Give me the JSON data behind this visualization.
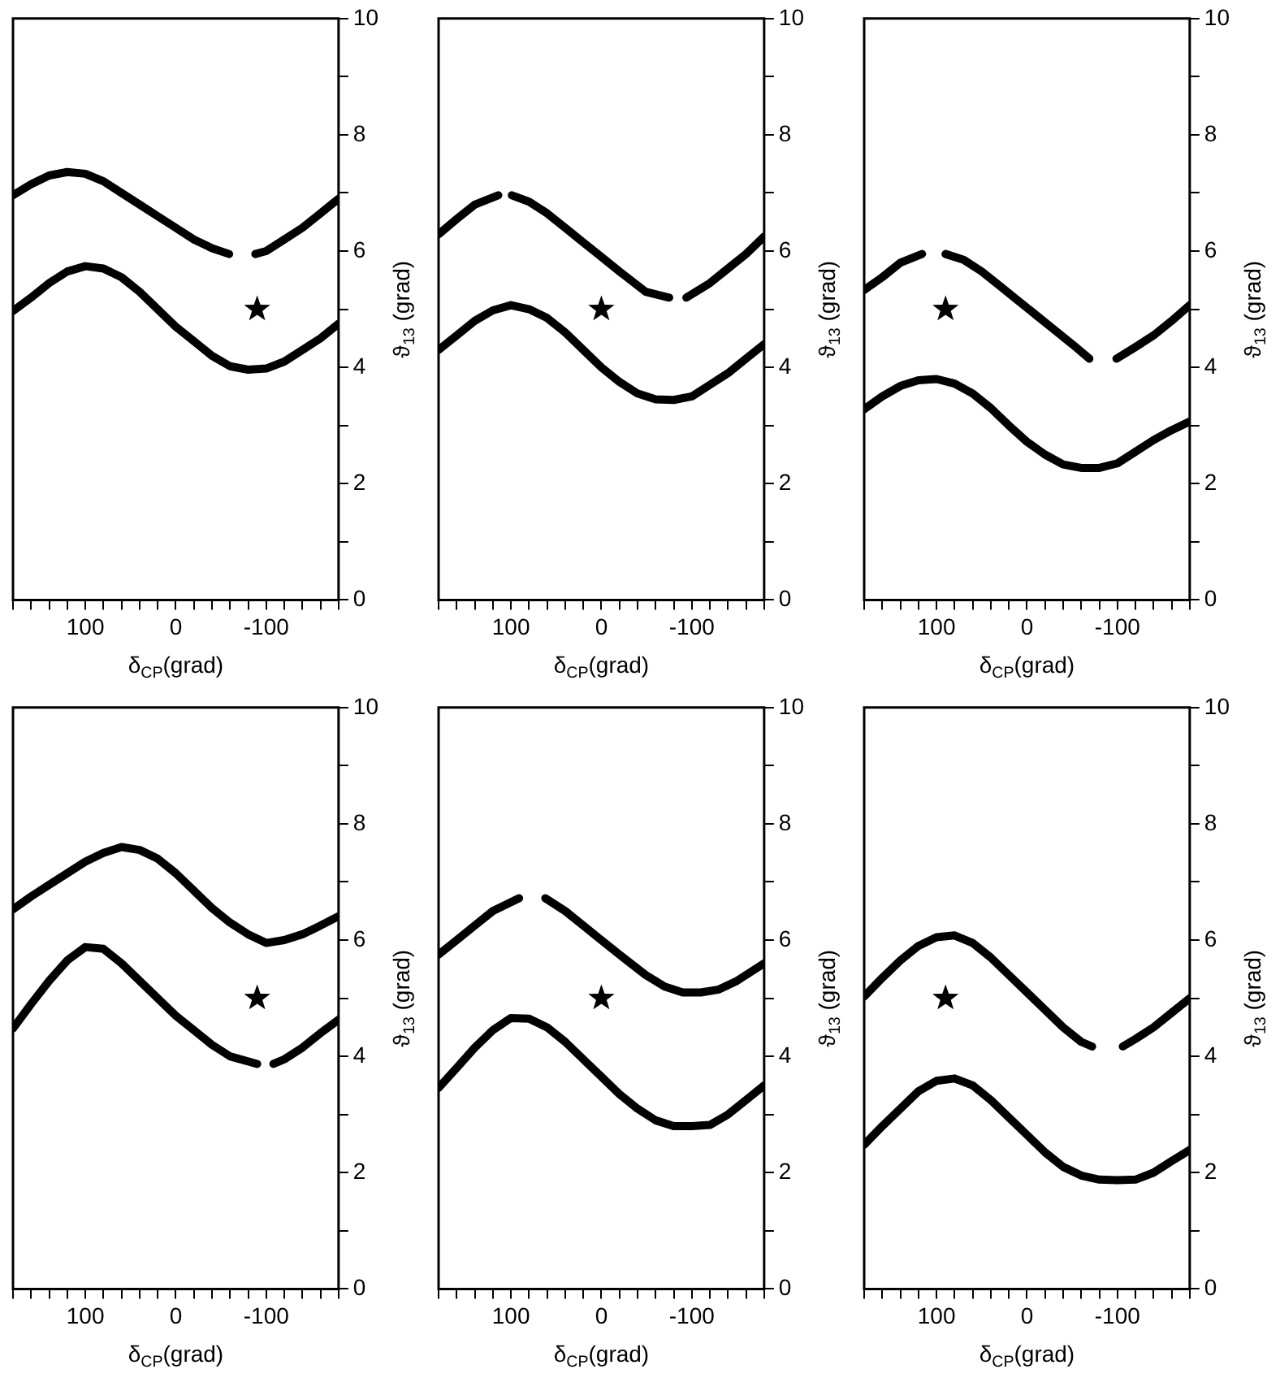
{
  "chart_data": [
    {
      "type": "line",
      "xlabel": "δ$_{CP}$(grad)",
      "ylabel": "ϑ$_{13}$ (grad)",
      "xlim": [
        180,
        -180
      ],
      "ylim": [
        0,
        10
      ],
      "xticks": [
        {
          "value": 180,
          "label": null
        },
        {
          "value": 160,
          "label": null
        },
        {
          "value": 140,
          "label": null
        },
        {
          "value": 120,
          "label": null
        },
        100,
        {
          "value": 80,
          "label": null
        },
        {
          "value": 60,
          "label": null
        },
        {
          "value": 40,
          "label": null
        },
        {
          "value": 20,
          "label": null
        },
        0,
        {
          "value": -20,
          "label": null
        },
        {
          "value": -40,
          "label": null
        },
        {
          "value": -60,
          "label": null
        },
        {
          "value": -80,
          "label": null
        },
        -100,
        {
          "value": -120,
          "label": null
        },
        {
          "value": -140,
          "label": null
        },
        {
          "value": -160,
          "label": null
        },
        {
          "value": -180,
          "label": null
        }
      ],
      "yticks": [
        0,
        {
          "value": 1,
          "label": null
        },
        2,
        {
          "value": 3,
          "label": null
        },
        4,
        {
          "value": 5,
          "label": null
        },
        6,
        {
          "value": 7,
          "label": null
        },
        8,
        {
          "value": 9,
          "label": null
        },
        10
      ],
      "grid": false,
      "legend": false,
      "marker": "none",
      "line_style": "solid",
      "series": [
        {
          "color": "#000000",
          "x": [
            180,
            160,
            140,
            120,
            100,
            80,
            60,
            40,
            20,
            0,
            -20,
            -40,
            -59
          ],
          "values": [
            6.96,
            7.15,
            7.3,
            7.36,
            7.33,
            7.2,
            7.0,
            6.8,
            6.6,
            6.4,
            6.2,
            6.05,
            5.95
          ]
        },
        {
          "color": "#000000",
          "x": [
            -88,
            -100,
            -120,
            -140,
            -160,
            -180
          ],
          "values": [
            5.95,
            6.0,
            6.2,
            6.4,
            6.65,
            6.9
          ]
        },
        {
          "color": "#000000",
          "x": [
            180,
            160,
            140,
            120,
            100,
            80,
            60,
            40,
            20,
            0,
            -20,
            -40,
            -60,
            -80,
            -100,
            -120,
            -140,
            -160,
            -180
          ],
          "values": [
            4.97,
            5.2,
            5.45,
            5.65,
            5.74,
            5.7,
            5.55,
            5.3,
            5.0,
            4.7,
            4.45,
            4.2,
            4.02,
            3.96,
            3.98,
            4.1,
            4.3,
            4.5,
            4.75
          ]
        },
        {
          "type": "scatter",
          "marker": "star",
          "color": "#000000",
          "x": [
            -90
          ],
          "values": [
            5
          ]
        }
      ]
    },
    {
      "type": "line",
      "xlabel": "δ$_{CP}$(grad)",
      "ylabel": "ϑ$_{13}$ (grad)",
      "xlim": [
        180,
        -180
      ],
      "ylim": [
        0,
        10
      ],
      "xticks": [
        {
          "value": 180,
          "label": null
        },
        {
          "value": 160,
          "label": null
        },
        {
          "value": 140,
          "label": null
        },
        {
          "value": 120,
          "label": null
        },
        100,
        {
          "value": 80,
          "label": null
        },
        {
          "value": 60,
          "label": null
        },
        {
          "value": 40,
          "label": null
        },
        {
          "value": 20,
          "label": null
        },
        0,
        {
          "value": -20,
          "label": null
        },
        {
          "value": -40,
          "label": null
        },
        {
          "value": -60,
          "label": null
        },
        {
          "value": -80,
          "label": null
        },
        -100,
        {
          "value": -120,
          "label": null
        },
        {
          "value": -140,
          "label": null
        },
        {
          "value": -160,
          "label": null
        },
        {
          "value": -180,
          "label": null
        }
      ],
      "yticks": [
        0,
        {
          "value": 1,
          "label": null
        },
        2,
        {
          "value": 3,
          "label": null
        },
        4,
        {
          "value": 5,
          "label": null
        },
        6,
        {
          "value": 7,
          "label": null
        },
        8,
        {
          "value": 9,
          "label": null
        },
        10
      ],
      "grid": false,
      "legend": false,
      "marker": "none",
      "line_style": "solid",
      "series": [
        {
          "color": "#000000",
          "x": [
            180,
            160,
            140,
            114
          ],
          "values": [
            6.29,
            6.55,
            6.8,
            6.96
          ]
        },
        {
          "color": "#000000",
          "x": [
            99,
            80,
            60,
            40,
            20,
            0,
            -20,
            -49,
            -75
          ],
          "values": [
            6.96,
            6.85,
            6.65,
            6.4,
            6.15,
            5.9,
            5.65,
            5.3,
            5.2
          ]
        },
        {
          "color": "#000000",
          "x": [
            -94,
            -120,
            -140,
            -160,
            -180
          ],
          "values": [
            5.2,
            5.45,
            5.7,
            5.95,
            6.25
          ]
        },
        {
          "color": "#000000",
          "x": [
            180,
            160,
            140,
            120,
            100,
            80,
            60,
            40,
            20,
            0,
            -20,
            -40,
            -60,
            -80,
            -100,
            -120,
            -140,
            -160,
            -180
          ],
          "values": [
            4.3,
            4.55,
            4.8,
            4.98,
            5.07,
            5.0,
            4.85,
            4.6,
            4.3,
            4.0,
            3.75,
            3.55,
            3.45,
            3.44,
            3.5,
            3.7,
            3.9,
            4.15,
            4.4
          ]
        },
        {
          "type": "scatter",
          "marker": "star",
          "color": "#000000",
          "x": [
            0
          ],
          "values": [
            5
          ]
        }
      ]
    },
    {
      "type": "line",
      "xlabel": "δ$_{CP}$(grad)",
      "ylabel": "ϑ$_{13}$ (grad)",
      "xlim": [
        180,
        -180
      ],
      "ylim": [
        0,
        10
      ],
      "xticks": [
        {
          "value": 180,
          "label": null
        },
        {
          "value": 160,
          "label": null
        },
        {
          "value": 140,
          "label": null
        },
        {
          "value": 120,
          "label": null
        },
        100,
        {
          "value": 80,
          "label": null
        },
        {
          "value": 60,
          "label": null
        },
        {
          "value": 40,
          "label": null
        },
        {
          "value": 20,
          "label": null
        },
        0,
        {
          "value": -20,
          "label": null
        },
        {
          "value": -40,
          "label": null
        },
        {
          "value": -60,
          "label": null
        },
        {
          "value": -80,
          "label": null
        },
        -100,
        {
          "value": -120,
          "label": null
        },
        {
          "value": -140,
          "label": null
        },
        {
          "value": -160,
          "label": null
        },
        {
          "value": -180,
          "label": null
        }
      ],
      "yticks": [
        0,
        {
          "value": 1,
          "label": null
        },
        2,
        {
          "value": 3,
          "label": null
        },
        4,
        {
          "value": 5,
          "label": null
        },
        6,
        {
          "value": 7,
          "label": null
        },
        8,
        {
          "value": 9,
          "label": null
        },
        10
      ],
      "grid": false,
      "legend": false,
      "marker": "none",
      "line_style": "solid",
      "series": [
        {
          "color": "#000000",
          "x": [
            180,
            160,
            140,
            116
          ],
          "values": [
            5.33,
            5.55,
            5.8,
            5.95
          ]
        },
        {
          "color": "#000000",
          "x": [
            90,
            70,
            50,
            30,
            10,
            -10,
            -30,
            -50,
            -69
          ],
          "values": [
            5.95,
            5.85,
            5.65,
            5.4,
            5.15,
            4.9,
            4.65,
            4.4,
            4.15
          ]
        },
        {
          "color": "#000000",
          "x": [
            -99,
            -120,
            -140,
            -160,
            -180
          ],
          "values": [
            4.15,
            4.35,
            4.55,
            4.8,
            5.07
          ]
        },
        {
          "color": "#000000",
          "x": [
            180,
            160,
            140,
            120,
            100,
            80,
            60,
            40,
            20,
            0,
            -20,
            -40,
            -60,
            -80,
            -100,
            -120,
            -140,
            -160,
            -180
          ],
          "values": [
            3.28,
            3.5,
            3.68,
            3.78,
            3.8,
            3.72,
            3.55,
            3.3,
            3.0,
            2.72,
            2.5,
            2.33,
            2.27,
            2.27,
            2.35,
            2.55,
            2.75,
            2.92,
            3.07
          ]
        },
        {
          "type": "scatter",
          "marker": "star",
          "color": "#000000",
          "x": [
            90
          ],
          "values": [
            5
          ]
        }
      ]
    },
    {
      "type": "line",
      "xlabel": "δ$_{CP}$(grad)",
      "ylabel": "ϑ$_{13}$ (grad)",
      "xlim": [
        180,
        -180
      ],
      "ylim": [
        0,
        10
      ],
      "xticks": [
        {
          "value": 180,
          "label": null
        },
        {
          "value": 160,
          "label": null
        },
        {
          "value": 140,
          "label": null
        },
        {
          "value": 120,
          "label": null
        },
        100,
        {
          "value": 80,
          "label": null
        },
        {
          "value": 60,
          "label": null
        },
        {
          "value": 40,
          "label": null
        },
        {
          "value": 20,
          "label": null
        },
        0,
        {
          "value": -20,
          "label": null
        },
        {
          "value": -40,
          "label": null
        },
        {
          "value": -60,
          "label": null
        },
        {
          "value": -80,
          "label": null
        },
        -100,
        {
          "value": -120,
          "label": null
        },
        {
          "value": -140,
          "label": null
        },
        {
          "value": -160,
          "label": null
        },
        {
          "value": -180,
          "label": null
        }
      ],
      "yticks": [
        0,
        {
          "value": 1,
          "label": null
        },
        2,
        {
          "value": 3,
          "label": null
        },
        4,
        {
          "value": 5,
          "label": null
        },
        6,
        {
          "value": 7,
          "label": null
        },
        8,
        {
          "value": 9,
          "label": null
        },
        10
      ],
      "grid": false,
      "legend": false,
      "marker": "none",
      "line_style": "solid",
      "series": [
        {
          "color": "#000000",
          "x": [
            180,
            160,
            140,
            120,
            100,
            80,
            60,
            40,
            20,
            0,
            -20,
            -40,
            -60,
            -80,
            -100,
            -120,
            -140,
            -160,
            -180
          ],
          "values": [
            6.53,
            6.75,
            6.95,
            7.15,
            7.35,
            7.5,
            7.6,
            7.55,
            7.4,
            7.15,
            6.85,
            6.55,
            6.3,
            6.1,
            5.95,
            6.0,
            6.1,
            6.25,
            6.41
          ]
        },
        {
          "color": "#000000",
          "x": [
            180,
            160,
            140,
            120,
            100,
            80,
            60,
            40,
            20,
            0,
            -20,
            -40,
            -60,
            -90
          ],
          "values": [
            4.48,
            4.9,
            5.3,
            5.65,
            5.88,
            5.85,
            5.6,
            5.3,
            5.0,
            4.7,
            4.45,
            4.2,
            4.0,
            3.87
          ]
        },
        {
          "color": "#000000",
          "x": [
            -108,
            -120,
            -140,
            -160,
            -180
          ],
          "values": [
            3.87,
            3.95,
            4.15,
            4.4,
            4.63
          ]
        },
        {
          "type": "scatter",
          "marker": "star",
          "color": "#000000",
          "x": [
            -90
          ],
          "values": [
            5
          ]
        }
      ]
    },
    {
      "type": "line",
      "xlabel": "δ$_{CP}$(grad)",
      "ylabel": "ϑ$_{13}$ (grad)",
      "xlim": [
        180,
        -180
      ],
      "ylim": [
        0,
        10
      ],
      "xticks": [
        {
          "value": 180,
          "label": null
        },
        {
          "value": 160,
          "label": null
        },
        {
          "value": 140,
          "label": null
        },
        {
          "value": 120,
          "label": null
        },
        100,
        {
          "value": 80,
          "label": null
        },
        {
          "value": 60,
          "label": null
        },
        {
          "value": 40,
          "label": null
        },
        {
          "value": 20,
          "label": null
        },
        0,
        {
          "value": -20,
          "label": null
        },
        {
          "value": -40,
          "label": null
        },
        {
          "value": -60,
          "label": null
        },
        {
          "value": -80,
          "label": null
        },
        -100,
        {
          "value": -120,
          "label": null
        },
        {
          "value": -140,
          "label": null
        },
        {
          "value": -160,
          "label": null
        },
        {
          "value": -180,
          "label": null
        }
      ],
      "yticks": [
        0,
        {
          "value": 1,
          "label": null
        },
        2,
        {
          "value": 3,
          "label": null
        },
        4,
        {
          "value": 5,
          "label": null
        },
        6,
        {
          "value": 7,
          "label": null
        },
        8,
        {
          "value": 9,
          "label": null
        },
        10
      ],
      "grid": false,
      "legend": false,
      "marker": "none",
      "line_style": "solid",
      "series": [
        {
          "color": "#000000",
          "x": [
            180,
            160,
            140,
            120,
            91
          ],
          "values": [
            5.75,
            6.0,
            6.25,
            6.5,
            6.72
          ]
        },
        {
          "color": "#000000",
          "x": [
            62,
            40,
            20,
            0,
            -20,
            -49,
            -70,
            -90,
            -110,
            -130,
            -150,
            -165,
            -180
          ],
          "values": [
            6.72,
            6.5,
            6.25,
            6.0,
            5.75,
            5.4,
            5.2,
            5.1,
            5.1,
            5.15,
            5.3,
            5.45,
            5.6
          ]
        },
        {
          "color": "#000000",
          "x": [
            180,
            160,
            140,
            120,
            100,
            80,
            60,
            40,
            20,
            0,
            -20,
            -40,
            -60,
            -80,
            -100,
            -120,
            -140,
            -160,
            -180
          ],
          "values": [
            3.46,
            3.8,
            4.15,
            4.45,
            4.66,
            4.65,
            4.5,
            4.25,
            3.95,
            3.65,
            3.35,
            3.1,
            2.9,
            2.8,
            2.8,
            2.82,
            3.0,
            3.25,
            3.5
          ]
        },
        {
          "type": "scatter",
          "marker": "star",
          "color": "#000000",
          "x": [
            0
          ],
          "values": [
            5
          ]
        }
      ]
    },
    {
      "type": "line",
      "xlabel": "δ$_{CP}$(grad)",
      "ylabel": "ϑ$_{13}$ (grad)",
      "xlim": [
        180,
        -180
      ],
      "ylim": [
        0,
        10
      ],
      "xticks": [
        {
          "value": 180,
          "label": null
        },
        {
          "value": 160,
          "label": null
        },
        {
          "value": 140,
          "label": null
        },
        {
          "value": 120,
          "label": null
        },
        100,
        {
          "value": 80,
          "label": null
        },
        {
          "value": 60,
          "label": null
        },
        {
          "value": 40,
          "label": null
        },
        {
          "value": 20,
          "label": null
        },
        0,
        {
          "value": -20,
          "label": null
        },
        {
          "value": -40,
          "label": null
        },
        {
          "value": -60,
          "label": null
        },
        {
          "value": -80,
          "label": null
        },
        -100,
        {
          "value": -120,
          "label": null
        },
        {
          "value": -140,
          "label": null
        },
        {
          "value": -160,
          "label": null
        },
        {
          "value": -180,
          "label": null
        }
      ],
      "yticks": [
        0,
        {
          "value": 1,
          "label": null
        },
        2,
        {
          "value": 3,
          "label": null
        },
        4,
        {
          "value": 5,
          "label": null
        },
        6,
        {
          "value": 7,
          "label": null
        },
        8,
        {
          "value": 9,
          "label": null
        },
        10
      ],
      "grid": false,
      "legend": false,
      "marker": "none",
      "line_style": "solid",
      "series": [
        {
          "color": "#000000",
          "x": [
            180,
            160,
            140,
            120,
            100,
            80,
            60,
            40,
            20,
            0,
            -20,
            -40,
            -60,
            -72
          ],
          "values": [
            5.03,
            5.35,
            5.65,
            5.9,
            6.05,
            6.08,
            5.95,
            5.7,
            5.4,
            5.1,
            4.8,
            4.5,
            4.25,
            4.17
          ]
        },
        {
          "color": "#000000",
          "x": [
            -106,
            -120,
            -140,
            -160,
            -180
          ],
          "values": [
            4.17,
            4.3,
            4.5,
            4.75,
            5.0
          ]
        },
        {
          "color": "#000000",
          "x": [
            180,
            160,
            140,
            120,
            100,
            80,
            60,
            40,
            20,
            0,
            -20,
            -40,
            -60,
            -80,
            -100,
            -120,
            -140,
            -160,
            -180
          ],
          "values": [
            2.48,
            2.8,
            3.1,
            3.4,
            3.58,
            3.62,
            3.5,
            3.25,
            2.95,
            2.65,
            2.35,
            2.1,
            1.95,
            1.88,
            1.87,
            1.88,
            2.0,
            2.2,
            2.39
          ]
        },
        {
          "type": "scatter",
          "marker": "star",
          "color": "#000000",
          "x": [
            90
          ],
          "values": [
            5
          ]
        }
      ]
    }
  ]
}
